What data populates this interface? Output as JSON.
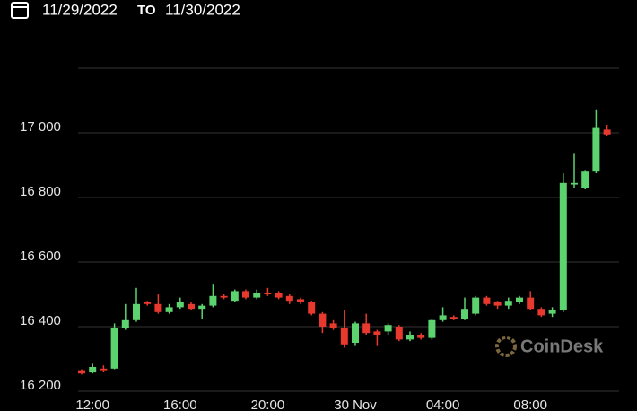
{
  "chart_data": {
    "type": "candlestick",
    "date_range": {
      "from": "11/29/2022",
      "to_label": "TO",
      "to": "11/30/2022"
    },
    "watermark": "CoinDesk",
    "categories": [
      null,
      "12:00",
      null,
      null,
      null,
      null,
      null,
      null,
      null,
      "16:00",
      null,
      null,
      null,
      null,
      null,
      null,
      null,
      "20:00",
      null,
      null,
      null,
      null,
      null,
      null,
      null,
      "30 Nov",
      null,
      null,
      null,
      null,
      null,
      null,
      null,
      "04:00",
      null,
      null,
      null,
      null,
      null,
      null,
      null,
      "08:00",
      null,
      null,
      null,
      null,
      null,
      null,
      null
    ],
    "open": [
      16265,
      16258,
      16270,
      16270,
      16395,
      16420,
      16475,
      16470,
      16445,
      16460,
      16470,
      16455,
      16465,
      16495,
      16480,
      16510,
      16490,
      16505,
      16505,
      16495,
      16485,
      16475,
      16440,
      16410,
      16395,
      16350,
      16410,
      16385,
      16385,
      16400,
      16360,
      16375,
      16365,
      16420,
      16430,
      16425,
      16440,
      16490,
      16475,
      16465,
      16475,
      16490,
      16455,
      16440,
      16450,
      16840,
      16830,
      16880,
      17010
    ],
    "high": [
      16268,
      16285,
      16280,
      16410,
      16470,
      16520,
      16480,
      16500,
      16470,
      16490,
      16475,
      16470,
      16530,
      16500,
      16515,
      16515,
      16515,
      16520,
      16510,
      16500,
      16490,
      16480,
      16445,
      16420,
      16450,
      16415,
      16440,
      16390,
      16410,
      16405,
      16385,
      16380,
      16425,
      16460,
      16435,
      16490,
      16495,
      16495,
      16480,
      16490,
      16495,
      16510,
      16460,
      16460,
      16875,
      16935,
      16885,
      17070,
      17025
    ],
    "low": [
      16252,
      16255,
      16260,
      16268,
      16390,
      16415,
      16465,
      16440,
      16440,
      16455,
      16450,
      16425,
      16460,
      16485,
      16475,
      16485,
      16485,
      16495,
      16485,
      16470,
      16470,
      16435,
      16380,
      16390,
      16335,
      16340,
      16375,
      16340,
      16375,
      16355,
      16355,
      16360,
      16360,
      16415,
      16420,
      16420,
      16435,
      16465,
      16455,
      16455,
      16470,
      16450,
      16430,
      16430,
      16445,
      16830,
      16825,
      16875,
      16990
    ],
    "close": [
      16255,
      16275,
      16265,
      16395,
      16420,
      16470,
      16470,
      16445,
      16460,
      16475,
      16455,
      16465,
      16495,
      16490,
      16510,
      16490,
      16505,
      16500,
      16490,
      16480,
      16475,
      16440,
      16400,
      16395,
      16345,
      16410,
      16380,
      16375,
      16405,
      16360,
      16375,
      16365,
      16420,
      16435,
      16425,
      16455,
      16490,
      16470,
      16465,
      16480,
      16490,
      16455,
      16435,
      16450,
      16845,
      16845,
      16880,
      17015,
      16995
    ],
    "up_color": "#5dd36f",
    "down_color": "#e8392e",
    "ylim": [
      16200,
      17200
    ],
    "yticks": [
      {
        "value": 16200,
        "label": "16 200"
      },
      {
        "value": 16400,
        "label": "16 400"
      },
      {
        "value": 16600,
        "label": "16 600"
      },
      {
        "value": 16800,
        "label": "16 800"
      },
      {
        "value": 17000,
        "label": "17 000"
      }
    ],
    "grid": true
  }
}
